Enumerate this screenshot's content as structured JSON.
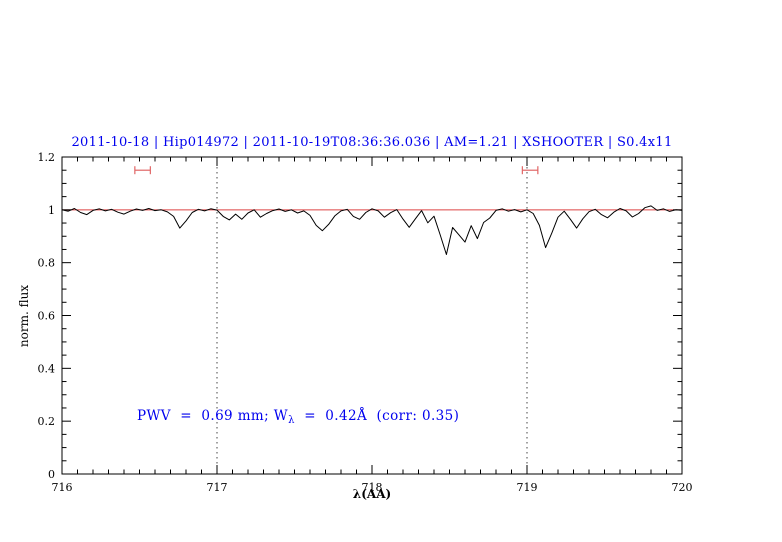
{
  "colors": {
    "accent_blue": "#0000ee",
    "spectrum": "#000000",
    "continuum": "#dd4444",
    "marker": "#e06666",
    "frame": "#000000",
    "dotted": "#444444",
    "background": "#ffffff"
  },
  "chart_data": {
    "type": "line",
    "title": "2011-10-18 | Hip014972 | 2011-10-19T08:36:36.036 | AM=1.21 | XSHOOTER | S0.4x11",
    "xlabel": "λ(AA)",
    "ylabel": "norm. flux",
    "xlim": [
      716,
      720
    ],
    "ylim": [
      0,
      1.2
    ],
    "x_ticks": [
      716,
      717,
      718,
      719,
      720
    ],
    "x_tick_labels": [
      "716",
      "717",
      "718",
      "719",
      "720"
    ],
    "y_ticks": [
      0,
      0.2,
      0.4,
      0.6,
      0.8,
      1,
      1.2
    ],
    "y_tick_labels": [
      "0",
      "0.2",
      "0.4",
      "0.6",
      "0.8",
      "1",
      "1.2"
    ],
    "x_minor_step": 0.1,
    "y_minor_step": 0.05,
    "grid": false,
    "legend": "none",
    "dotted_vlines": [
      717,
      719
    ],
    "continuum_y": 1.0,
    "range_markers": [
      {
        "x1": 716.47,
        "x2": 716.57,
        "y": 1.15
      },
      {
        "x1": 718.97,
        "x2": 719.07,
        "y": 1.15
      }
    ],
    "annotation": {
      "prefix": "PWV  =  0.69 mm; W",
      "sub": "λ",
      "suffix": "  =  0.42Å  (corr: 0.35)"
    },
    "series": [
      {
        "name": "telluric-spectrum",
        "x_start": 716.0,
        "x_step": 0.04,
        "flux": [
          1.0,
          0.995,
          1.005,
          0.99,
          0.982,
          0.998,
          1.004,
          0.996,
          1.002,
          0.991,
          0.984,
          0.995,
          1.003,
          0.998,
          1.005,
          0.997,
          1.0,
          0.992,
          0.975,
          0.931,
          0.958,
          0.99,
          1.002,
          0.996,
          1.004,
          0.999,
          0.975,
          0.962,
          0.984,
          0.964,
          0.988,
          1.0,
          0.972,
          0.986,
          0.997,
          1.003,
          0.994,
          1.0,
          0.988,
          0.996,
          0.979,
          0.941,
          0.921,
          0.945,
          0.977,
          0.996,
          1.002,
          0.975,
          0.964,
          0.99,
          1.004,
          0.996,
          0.972,
          0.989,
          1.001,
          0.965,
          0.934,
          0.966,
          0.997,
          0.951,
          0.976,
          0.905,
          0.831,
          0.933,
          0.906,
          0.878,
          0.94,
          0.891,
          0.952,
          0.969,
          0.998,
          1.004,
          0.995,
          1.001,
          0.992,
          1.0,
          0.986,
          0.941,
          0.857,
          0.912,
          0.972,
          0.995,
          0.964,
          0.931,
          0.966,
          0.993,
          1.002,
          0.982,
          0.97,
          0.991,
          1.005,
          0.996,
          0.973,
          0.986,
          1.008,
          1.015,
          0.998,
          1.004,
          0.994,
          1.0,
          0.998
        ]
      }
    ]
  }
}
